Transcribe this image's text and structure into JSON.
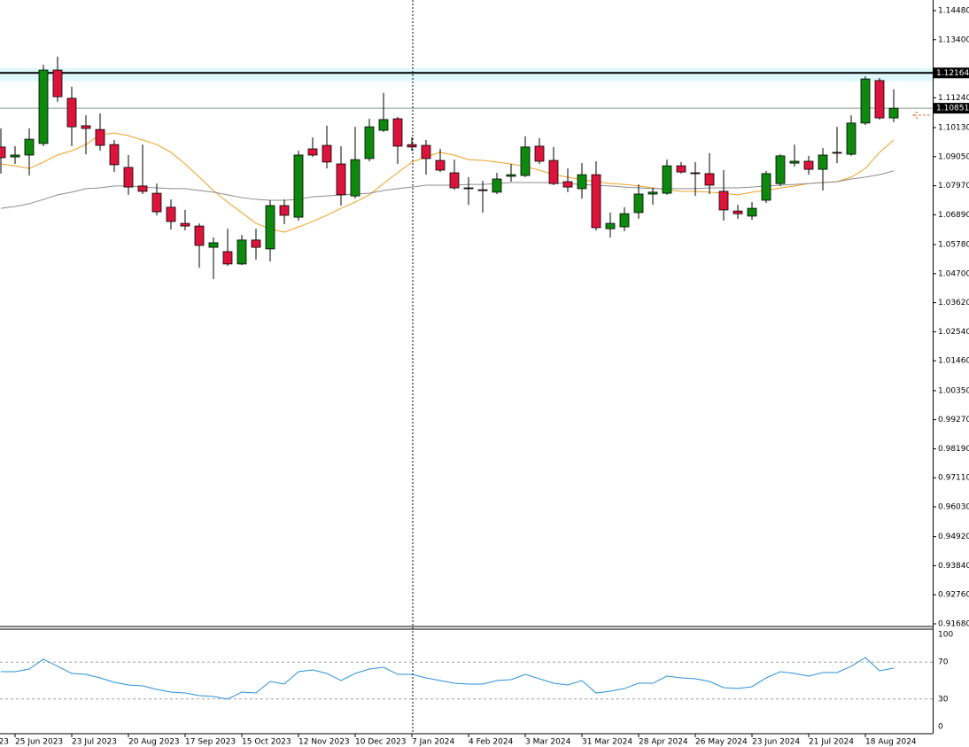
{
  "chart_data": [
    {
      "type": "candlestick",
      "categories": [
        null,
        "25 Jun 2023",
        null,
        null,
        null,
        "23 Jul 2023",
        null,
        null,
        null,
        "20 Aug 2023",
        null,
        null,
        null,
        "17 Sep 2023",
        null,
        null,
        null,
        "15 Oct 2023",
        null,
        null,
        null,
        "12 Nov 2023",
        null,
        null,
        null,
        "10 Dec 2023",
        null,
        null,
        null,
        "7 Jan 2024",
        null,
        null,
        null,
        "4 Feb 2024",
        null,
        null,
        null,
        "3 Mar 2024",
        null,
        null,
        null,
        "31 Mar 2024",
        null,
        null,
        null,
        "28 Apr 2024",
        null,
        null,
        null,
        "26 May 2024",
        null,
        null,
        null,
        "23 Jun 2024",
        null,
        null,
        null,
        "21 Jul 2024",
        null,
        null,
        null,
        "18 Aug 2024",
        null,
        null
      ],
      "clipped_date_label": "23",
      "open": [
        1.0941,
        1.0904,
        1.0911,
        1.0954,
        1.1227,
        1.1122,
        1.102,
        1.1006,
        1.095,
        1.0865,
        1.0796,
        1.0769,
        1.0717,
        1.0657,
        1.0647,
        1.0568,
        1.0552,
        1.0506,
        1.0595,
        1.0562,
        1.0723,
        1.068,
        1.0934,
        1.0947,
        1.0878,
        1.0759,
        1.0898,
        1.1003,
        1.1046,
        1.095,
        1.0947,
        1.0891,
        1.0845,
        1.0789,
        1.0782,
        1.0773,
        1.0832,
        1.0835,
        1.0944,
        1.0891,
        1.0812,
        1.0786,
        1.0838,
        1.0637,
        1.0644,
        1.0697,
        1.0766,
        1.0769,
        1.0871,
        1.0845,
        1.0842,
        1.0776,
        1.0703,
        1.0684,
        1.0743,
        1.0805,
        1.0881,
        1.0888,
        1.0858,
        1.0921,
        1.0914,
        1.103,
        1.1188,
        1.1049
      ],
      "high": [
        1.101,
        1.0944,
        1.101,
        1.1247,
        1.1277,
        1.1165,
        1.1059,
        1.1066,
        1.0967,
        1.0911,
        1.095,
        1.0805,
        1.0746,
        1.0707,
        1.0657,
        1.0604,
        1.0637,
        1.0614,
        1.0637,
        1.0743,
        1.0746,
        1.0927,
        1.0977,
        1.102,
        1.0944,
        1.1016,
        1.1046,
        1.1142,
        1.1053,
        1.0977,
        1.0967,
        1.0934,
        1.0894,
        1.0829,
        1.0815,
        1.0845,
        1.0878,
        1.098,
        1.0974,
        1.0941,
        1.0861,
        1.0881,
        1.0888,
        1.0697,
        1.0717,
        1.0802,
        1.0789,
        1.0894,
        1.0885,
        1.0885,
        1.0918,
        1.0855,
        1.0726,
        1.0736,
        1.0852,
        1.0914,
        1.095,
        1.0908,
        1.0937,
        1.1016,
        1.1059,
        1.1204,
        1.1198,
        1.1155
      ],
      "low": [
        1.0842,
        1.0878,
        1.0835,
        1.0944,
        1.1109,
        1.0944,
        1.0914,
        1.0927,
        1.0848,
        1.0763,
        1.0766,
        1.0687,
        1.0634,
        1.0631,
        1.0492,
        1.045,
        1.0499,
        1.0502,
        1.0522,
        1.0515,
        1.0654,
        1.0667,
        1.0904,
        1.0861,
        1.0723,
        1.0749,
        1.0888,
        1.0997,
        1.0878,
        1.0927,
        1.0838,
        1.0848,
        1.0782,
        1.0726,
        1.0697,
        1.0766,
        1.0812,
        1.0829,
        1.0878,
        1.0799,
        1.0773,
        1.0749,
        1.0631,
        1.0604,
        1.0628,
        1.0674,
        1.0726,
        1.0763,
        1.0842,
        1.0759,
        1.0766,
        1.0667,
        1.0674,
        1.067,
        1.0733,
        1.0796,
        1.0868,
        1.0838,
        1.0779,
        1.0881,
        1.0908,
        1.1023,
        1.1043,
        1.1033
      ],
      "close": [
        1.0901,
        1.0911,
        1.097,
        1.1227,
        1.1128,
        1.1016,
        1.101,
        1.0947,
        1.0875,
        1.0792,
        1.0776,
        1.07,
        1.0664,
        1.0647,
        1.0575,
        1.0585,
        1.0506,
        1.0595,
        1.0568,
        1.0723,
        1.0687,
        1.0911,
        1.0911,
        1.0885,
        1.0763,
        1.0894,
        1.1016,
        1.1043,
        1.0944,
        1.0941,
        1.0898,
        1.0855,
        1.0789,
        1.0786,
        1.0779,
        1.0822,
        1.0838,
        1.0941,
        1.0888,
        1.0805,
        1.0792,
        1.0838,
        1.0641,
        1.0657,
        1.0693,
        1.0766,
        1.0773,
        1.0871,
        1.0848,
        1.0842,
        1.0799,
        1.0707,
        1.0693,
        1.0713,
        1.0842,
        1.0908,
        1.0888,
        1.0858,
        1.0911,
        1.0918,
        1.103,
        1.1194,
        1.1049,
        1.1085
      ],
      "up_color": "#0d8a0d",
      "down_color": "#dc143c",
      "moving_averages": [
        {
          "color": "#f0a020",
          "values": [
            1.0878,
            1.0871,
            1.0861,
            1.0885,
            1.0911,
            1.0927,
            1.095,
            1.0987,
            1.0993,
            1.0983,
            1.0967,
            1.095,
            1.0921,
            1.0878,
            1.0829,
            1.0779,
            1.0736,
            1.0697,
            1.0657,
            1.0637,
            1.0624,
            1.0644,
            1.0664,
            1.0687,
            1.0713,
            1.0736,
            1.0763,
            1.0805,
            1.0845,
            1.0885,
            1.0904,
            1.0921,
            1.0911,
            1.0894,
            1.0891,
            1.0885,
            1.0878,
            1.0868,
            1.0855,
            1.0838,
            1.0829,
            1.0819,
            1.0812,
            1.0805,
            1.0802,
            1.0796,
            1.0789,
            1.0782,
            1.0776,
            1.0776,
            1.0773,
            1.0769,
            1.0763,
            1.0773,
            1.0779,
            1.0789,
            1.0796,
            1.0805,
            1.0809,
            1.0812,
            1.0829,
            1.0861,
            1.0921,
            1.0967
          ]
        },
        {
          "color": "#8c8c8c",
          "values": [
            1.0713,
            1.072,
            1.073,
            1.0746,
            1.0763,
            1.0773,
            1.0786,
            1.0789,
            1.0796,
            1.0796,
            1.0792,
            1.0789,
            1.0786,
            1.0786,
            1.0779,
            1.0773,
            1.0763,
            1.0753,
            1.0746,
            1.0743,
            1.0743,
            1.0746,
            1.0756,
            1.0759,
            1.0763,
            1.0766,
            1.0769,
            1.0779,
            1.0786,
            1.0792,
            1.0799,
            1.0799,
            1.0799,
            1.0802,
            1.0802,
            1.0805,
            1.0809,
            1.0809,
            1.0809,
            1.0809,
            1.0805,
            1.0802,
            1.0799,
            1.0796,
            1.0792,
            1.0789,
            1.0786,
            1.0786,
            1.0786,
            1.0786,
            1.0789,
            1.0789,
            1.0789,
            1.0792,
            1.0796,
            1.0799,
            1.0802,
            1.0805,
            1.0809,
            1.0812,
            1.0822,
            1.0829,
            1.0838,
            1.0852
          ]
        }
      ],
      "price_lines": [
        {
          "value": 1.12164,
          "label": "1.12164",
          "color": "#000000",
          "zone": [
            1.1185,
            1.1235
          ],
          "zone_color": "#dff8fc"
        },
        {
          "value": 1.10851,
          "label": "1.10851",
          "color": "#7f9c8c"
        }
      ],
      "ylim": [
        0.9168,
        1.1448
      ],
      "yticks": [
        {
          "value": 1.1448,
          "label": "1.14480"
        },
        {
          "value": 1.134,
          "label": "1.13400"
        },
        {
          "value": 1.1124,
          "label": "1.11240"
        },
        {
          "value": 1.1013,
          "label": "1.10130"
        },
        {
          "value": 1.0905,
          "label": "1.09050"
        },
        {
          "value": 1.0797,
          "label": "1.07970"
        },
        {
          "value": 1.0689,
          "label": "1.06890"
        },
        {
          "value": 1.0578,
          "label": "1.05780"
        },
        {
          "value": 1.047,
          "label": "1.04700"
        },
        {
          "value": 1.0362,
          "label": "1.03620"
        },
        {
          "value": 1.0254,
          "label": "1.02540"
        },
        {
          "value": 1.0146,
          "label": "1.01460"
        },
        {
          "value": 1.0035,
          "label": "1.00350"
        },
        {
          "value": 0.9927,
          "label": "0.99270"
        },
        {
          "value": 0.9819,
          "label": "0.98190"
        },
        {
          "value": 0.9711,
          "label": "0.97110"
        },
        {
          "value": 0.9603,
          "label": "0.96030"
        },
        {
          "value": 0.9492,
          "label": "0.94920"
        },
        {
          "value": 0.9384,
          "label": "0.93840"
        },
        {
          "value": 0.9276,
          "label": "0.92760"
        },
        {
          "value": 0.9168,
          "label": "0.91680"
        }
      ]
    },
    {
      "type": "line",
      "values": [
        59.6,
        59.6,
        62.5,
        73.1,
        65.4,
        57.7,
        56.7,
        52.9,
        48.1,
        45.2,
        44.2,
        40.4,
        37.5,
        36.5,
        33.7,
        32.7,
        29.8,
        37.5,
        36.5,
        49.0,
        46.2,
        59.6,
        61.5,
        57.7,
        50.0,
        57.7,
        62.5,
        64.4,
        56.7,
        56.7,
        52.9,
        50.0,
        47.1,
        46.2,
        46.2,
        50.0,
        51.0,
        56.7,
        51.9,
        47.1,
        45.2,
        50.0,
        36.5,
        38.5,
        41.3,
        47.1,
        47.1,
        54.8,
        52.9,
        51.9,
        49.0,
        42.3,
        41.3,
        43.3,
        52.9,
        59.6,
        57.7,
        54.8,
        58.7,
        58.7,
        65.4,
        75.0,
        60.6,
        63.5
      ],
      "color": "#2a8fd8",
      "ylim": [
        0,
        100
      ],
      "yticks": [
        100,
        70,
        30,
        0
      ],
      "levels": [
        70,
        30
      ]
    }
  ]
}
